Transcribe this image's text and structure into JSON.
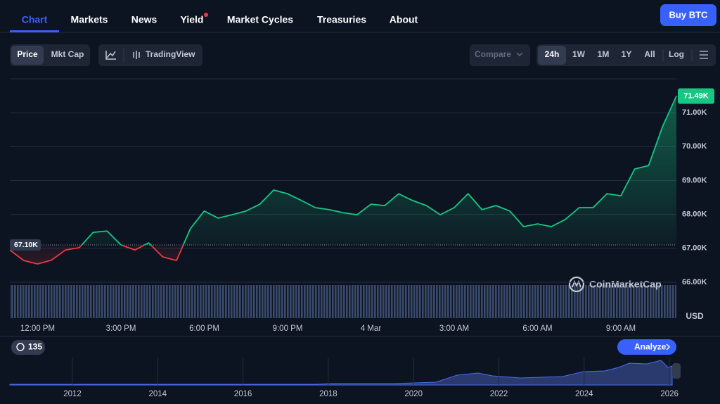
{
  "nav": {
    "tabs": [
      "Chart",
      "Markets",
      "News",
      "Yield",
      "Market Cycles",
      "Treasuries",
      "About"
    ],
    "buy": "Buy BTC"
  },
  "toolbar": {
    "modes": [
      "Price",
      "Mkt Cap"
    ],
    "tradingview": "TradingView",
    "compare": "Compare",
    "ranges": [
      "24h",
      "1W",
      "1M",
      "1Y",
      "All"
    ],
    "log": "Log"
  },
  "chart_data": {
    "type": "line",
    "categories": [
      null,
      null,
      "12:00 PM",
      null,
      null,
      null,
      null,
      null,
      "3:00 PM",
      null,
      null,
      null,
      null,
      null,
      "6:00 PM",
      null,
      null,
      null,
      null,
      null,
      "9:00 PM",
      null,
      null,
      null,
      null,
      null,
      "4 Mar",
      null,
      null,
      null,
      null,
      null,
      "3:00 AM",
      null,
      null,
      null,
      null,
      null,
      "6:00 AM",
      null,
      null,
      null,
      null,
      null,
      "9:00 AM",
      null,
      null,
      null,
      null
    ],
    "values": [
      66950,
      66640,
      66540,
      66650,
      66950,
      67020,
      67470,
      67510,
      67100,
      66950,
      67160,
      66750,
      66640,
      67580,
      68100,
      67890,
      67990,
      68100,
      68300,
      68720,
      68610,
      68410,
      68200,
      68140,
      68050,
      67990,
      68300,
      68260,
      68610,
      68410,
      68260,
      67990,
      68200,
      68610,
      68140,
      68260,
      68100,
      67640,
      67720,
      67640,
      67850,
      68200,
      68200,
      68610,
      68550,
      69340,
      69440,
      70590,
      71490
    ],
    "value_labels": [
      null,
      null,
      null,
      null,
      null,
      null,
      null,
      null,
      null,
      null,
      null,
      null,
      null,
      null,
      null,
      null,
      null,
      null,
      null,
      null,
      null,
      null,
      null,
      null,
      null,
      null,
      null,
      null,
      null,
      null,
      null,
      null,
      null,
      null,
      null,
      null,
      null,
      null,
      null,
      null,
      null,
      null,
      null,
      null,
      null,
      null,
      null,
      null,
      "71.49K"
    ],
    "ylim": [
      64940,
      72000
    ],
    "yticks": [
      {
        "value": 66000,
        "label": "66.00K"
      },
      {
        "value": 67000,
        "label": "67.00K"
      },
      {
        "value": 68000,
        "label": "68.00K"
      },
      {
        "value": 69000,
        "label": "69.00K"
      },
      {
        "value": 70000,
        "label": "70.00K"
      },
      {
        "value": 71000,
        "label": "71.00K"
      }
    ],
    "reference": {
      "value": 67100,
      "label": "67.10K"
    },
    "y_unit": "USD",
    "grid": true,
    "colors": {
      "up": "#16c784",
      "down": "#ea3943"
    },
    "watermark": "CoinMarketCap"
  },
  "overview": {
    "count": 135,
    "analyze": "Analyze",
    "years": [
      "2012",
      "2014",
      "2016",
      "2018",
      "2020",
      "2022",
      "2024",
      "2026"
    ]
  }
}
